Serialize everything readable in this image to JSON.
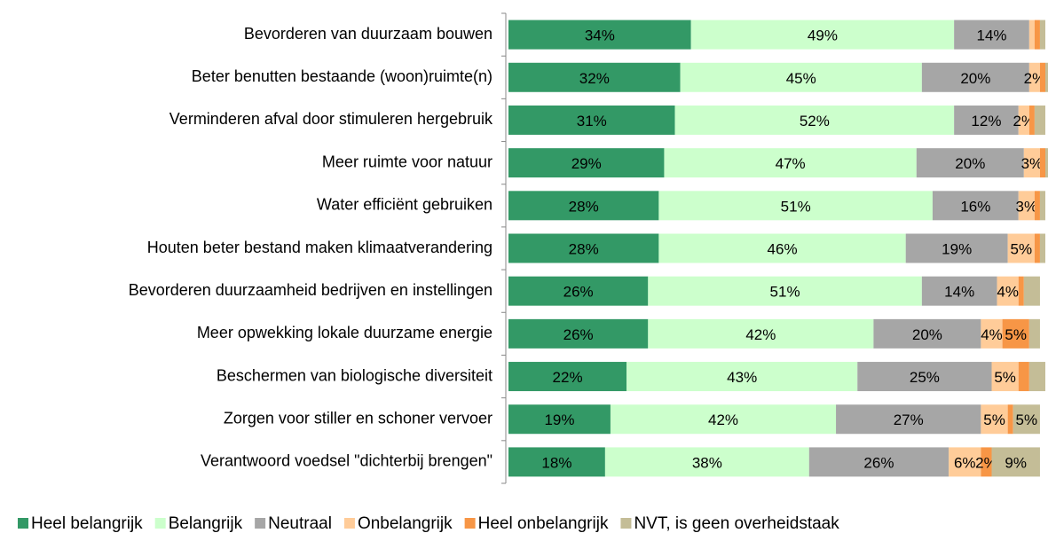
{
  "chart_data": {
    "type": "stacked-barh",
    "categories": [
      "Bevorderen van duurzaam bouwen",
      "Beter benutten bestaande (woon)ruimte(n)",
      "Verminderen afval door stimuleren hergebruik",
      "Meer ruimte voor natuur",
      "Water efficiënt gebruiken",
      "Houten beter bestand maken klimaatverandering",
      "Bevorderen duurzaamheid bedrijven en instellingen",
      "Meer opwekking lokale duurzame energie",
      "Beschermen van biologische diversiteit",
      "Zorgen voor stiller en schoner vervoer",
      "Verantwoord voedsel \"dichterbij brengen\""
    ],
    "series": [
      {
        "name": "Heel belangrijk",
        "color": "#339966",
        "values": [
          34,
          32,
          31,
          29,
          28,
          28,
          26,
          26,
          22,
          19,
          18
        ],
        "value_labels": [
          "34%",
          "32%",
          "31%",
          "29%",
          "28%",
          "28%",
          "26%",
          "26%",
          "22%",
          "19%",
          "18%"
        ]
      },
      {
        "name": "Belangrijk",
        "color": "#ccffcc",
        "values": [
          49,
          45,
          52,
          47,
          51,
          46,
          51,
          42,
          43,
          42,
          38
        ],
        "value_labels": [
          "49%",
          "45%",
          "52%",
          "47%",
          "51%",
          "46%",
          "51%",
          "42%",
          "43%",
          "42%",
          "38%"
        ]
      },
      {
        "name": "Neutraal",
        "color": "#a6a6a6",
        "values": [
          14,
          20,
          12,
          20,
          16,
          19,
          14,
          20,
          25,
          27,
          26
        ],
        "value_labels": [
          "14%",
          "20%",
          "12%",
          "20%",
          "16%",
          "19%",
          "14%",
          "20%",
          "25%",
          "27%",
          "26%"
        ]
      },
      {
        "name": "Onbelangrijk",
        "color": "#ffcc99",
        "values": [
          1,
          2,
          2,
          3,
          3,
          5,
          4,
          4,
          5,
          5,
          6
        ],
        "value_labels": [
          null,
          "2%",
          "2%",
          "3%",
          "3%",
          "5%",
          "4%",
          "4%",
          "5%",
          "5%",
          "6%"
        ]
      },
      {
        "name": "Heel onbelangrijk",
        "color": "#f79646",
        "values": [
          1,
          1,
          1,
          1,
          1,
          1,
          1,
          5,
          2,
          1,
          2
        ],
        "value_labels": [
          null,
          null,
          null,
          null,
          null,
          null,
          null,
          "5%",
          null,
          null,
          "2%"
        ]
      },
      {
        "name": "NVT, is geen overheidstaak",
        "color": "#c4bd97",
        "values": [
          1,
          1,
          2,
          1,
          1,
          1,
          3,
          2,
          3,
          5,
          9
        ],
        "value_labels": [
          null,
          null,
          null,
          null,
          null,
          null,
          null,
          null,
          null,
          "5%",
          "9%"
        ]
      }
    ],
    "xlim": [
      0,
      100
    ]
  }
}
